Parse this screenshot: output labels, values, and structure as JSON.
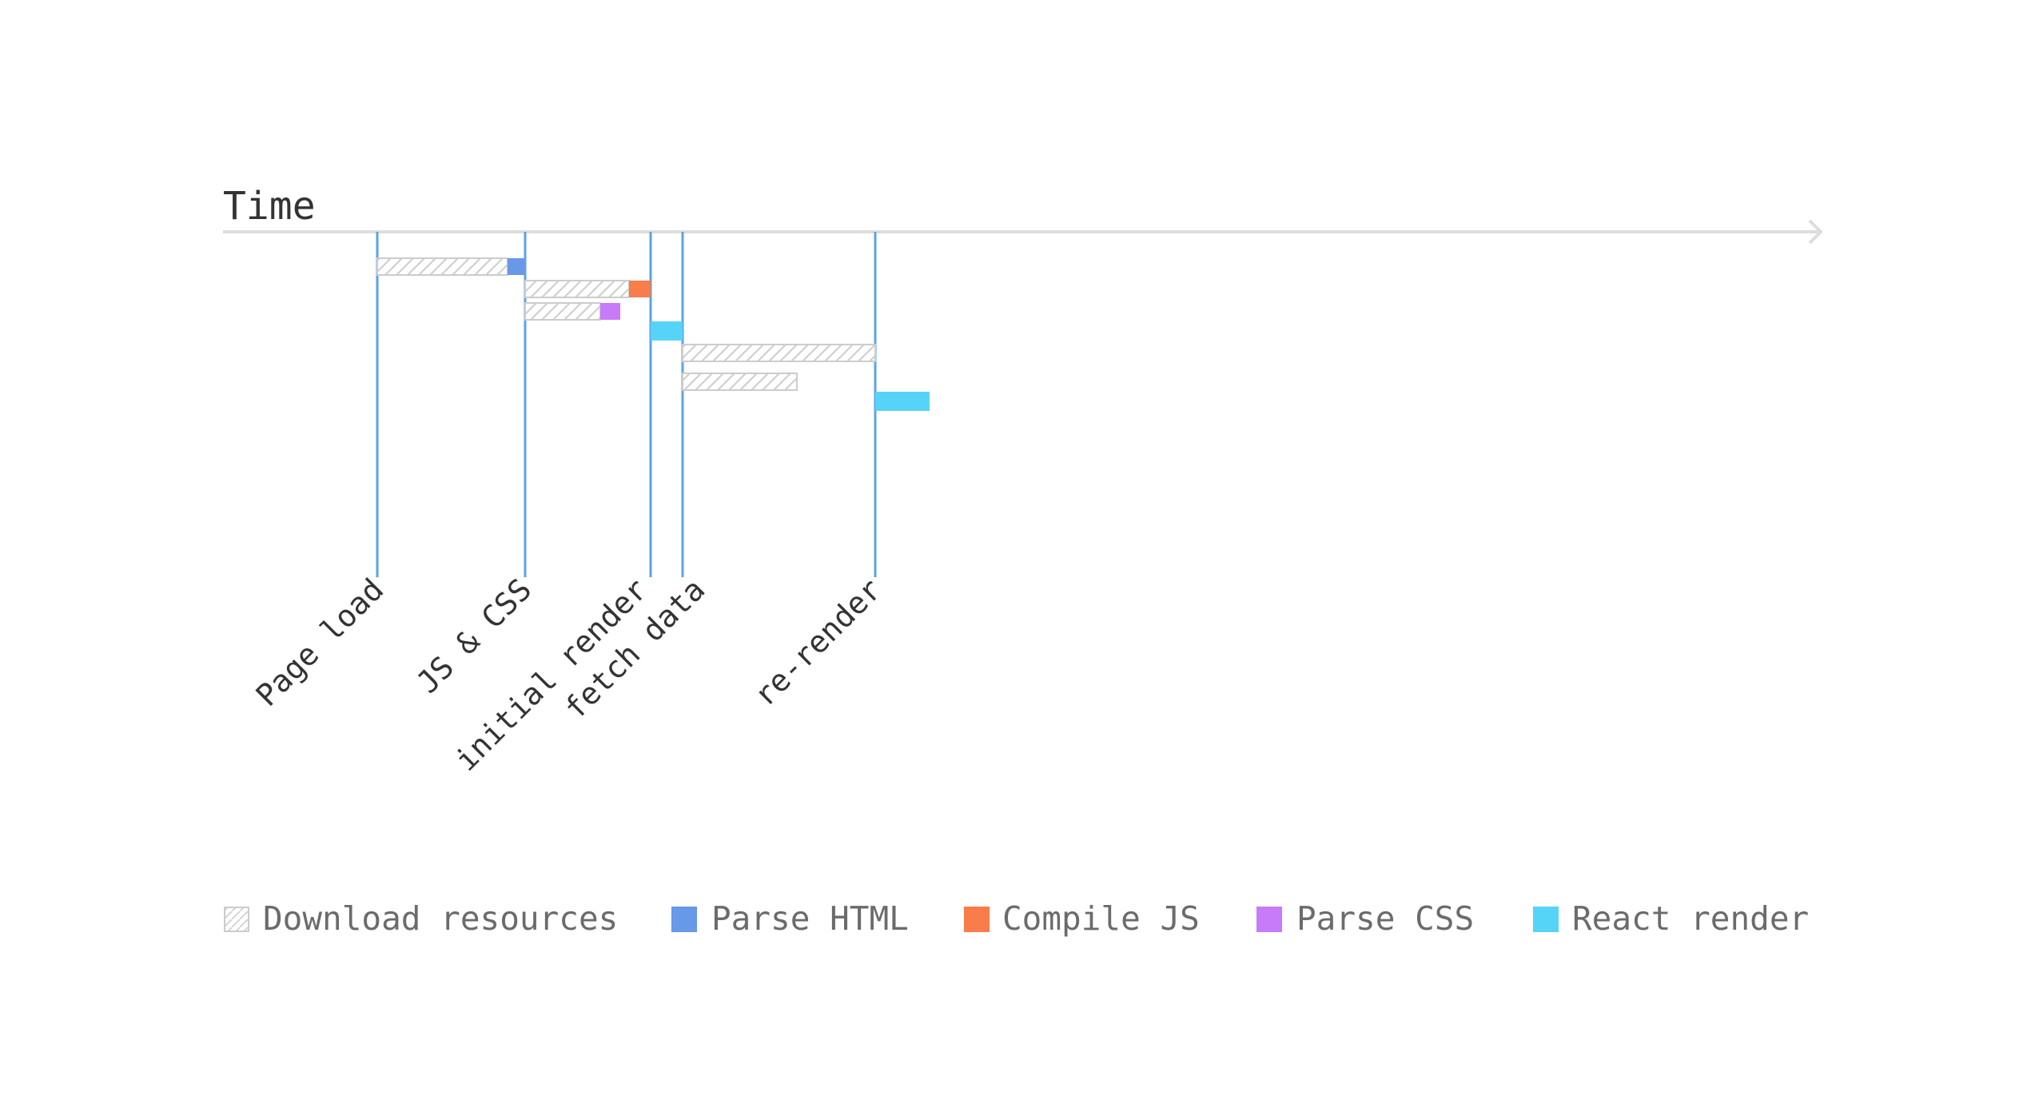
{
  "axis": {
    "label": "Time"
  },
  "milestones": [
    {
      "label": "Page load"
    },
    {
      "label": "JS & CSS"
    },
    {
      "label": "initial render"
    },
    {
      "label": "fetch data"
    },
    {
      "label": "re-render"
    }
  ],
  "legend": [
    {
      "key": "download",
      "label": "Download resources",
      "color": "#cccccc",
      "pattern": "hatched"
    },
    {
      "key": "parse_html",
      "label": "Parse HTML",
      "color": "#6898e8"
    },
    {
      "key": "compile_js",
      "label": "Compile JS",
      "color": "#f97c4b"
    },
    {
      "key": "parse_css",
      "label": "Parse CSS",
      "color": "#c77bf9"
    },
    {
      "key": "react_render",
      "label": "React render",
      "color": "#56d4f8"
    }
  ],
  "colors": {
    "axis": "#dddddd",
    "milestone_line": "#5aa3e8",
    "hatch": "#cccccc",
    "text": "#333333",
    "legend_text": "#6b6b6b"
  }
}
